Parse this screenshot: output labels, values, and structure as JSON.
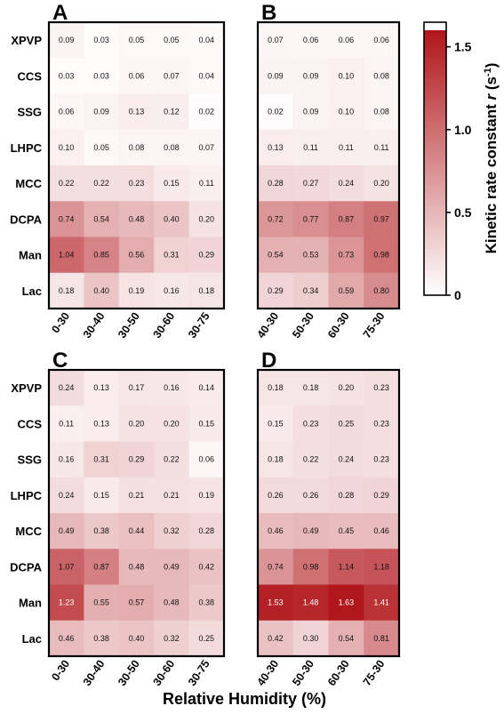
{
  "chart_data": [
    {
      "type": "heatmap",
      "panel": "A",
      "rows": [
        "XPVP",
        "CCS",
        "SSG",
        "LHPC",
        "MCC",
        "DCPA",
        "Man",
        "Lac"
      ],
      "columns": [
        "0-30",
        "30-40",
        "30-50",
        "30-60",
        "30-75"
      ],
      "values": [
        [
          0.09,
          0.03,
          0.05,
          0.05,
          0.04
        ],
        [
          0.03,
          0.03,
          0.06,
          0.07,
          0.04
        ],
        [
          0.06,
          0.09,
          0.13,
          0.12,
          0.02
        ],
        [
          0.1,
          0.05,
          0.08,
          0.08,
          0.07
        ],
        [
          0.22,
          0.22,
          0.23,
          0.15,
          0.11
        ],
        [
          0.74,
          0.54,
          0.48,
          0.4,
          0.2
        ],
        [
          1.04,
          0.85,
          0.56,
          0.31,
          0.29
        ],
        [
          0.18,
          0.4,
          0.19,
          0.16,
          0.18
        ]
      ],
      "value_labels": [
        [
          "0.09",
          "0.03",
          "0.05",
          "0.05",
          "0.04"
        ],
        [
          "0.03",
          "0.03",
          "0.06",
          "0.07",
          "0.04"
        ],
        [
          "0.06",
          "0.09",
          "0.13",
          "0.12",
          "0.02"
        ],
        [
          "0.10",
          "0.05",
          "0.08",
          "0.08",
          "0.07"
        ],
        [
          "0.22",
          "0.22",
          "0.23",
          "0.15",
          "0.11"
        ],
        [
          "0.74",
          "0.54",
          "0.48",
          "0.40",
          "0.20"
        ],
        [
          "1.04",
          "0.85",
          "0.56",
          "0.31",
          "0.29"
        ],
        [
          "0.18",
          "0.40",
          "0.19",
          "0.16",
          "0.18"
        ]
      ]
    },
    {
      "type": "heatmap",
      "panel": "B",
      "rows": [
        "XPVP",
        "CCS",
        "SSG",
        "LHPC",
        "MCC",
        "DCPA",
        "Man",
        "Lac"
      ],
      "columns": [
        "40-30",
        "50-30",
        "60-30",
        "75-30"
      ],
      "values": [
        [
          0.07,
          0.06,
          0.06,
          0.06
        ],
        [
          0.09,
          0.09,
          0.1,
          0.08
        ],
        [
          0.02,
          0.09,
          0.1,
          0.08
        ],
        [
          0.13,
          0.11,
          0.11,
          0.11
        ],
        [
          0.28,
          0.27,
          0.24,
          0.2
        ],
        [
          0.72,
          0.77,
          0.87,
          0.97
        ],
        [
          0.54,
          0.53,
          0.73,
          0.98
        ],
        [
          0.29,
          0.34,
          0.59,
          0.8
        ]
      ],
      "value_labels": [
        [
          "0.07",
          "0.06",
          "0.06",
          "0.06"
        ],
        [
          "0.09",
          "0.09",
          "0.10",
          "0.08"
        ],
        [
          "0.02",
          "0.09",
          "0.10",
          "0.08"
        ],
        [
          "0.13",
          "0.11",
          "0.11",
          "0.11"
        ],
        [
          "0.28",
          "0.27",
          "0.24",
          "0.20"
        ],
        [
          "0.72",
          "0.77",
          "0.87",
          "0.97"
        ],
        [
          "0.54",
          "0.53",
          "0.73",
          "0.98"
        ],
        [
          "0.29",
          "0.34",
          "0.59",
          "0.80"
        ]
      ]
    },
    {
      "type": "heatmap",
      "panel": "C",
      "rows": [
        "XPVP",
        "CCS",
        "SSG",
        "LHPC",
        "MCC",
        "DCPA",
        "Man",
        "Lac"
      ],
      "columns": [
        "0-30",
        "30-40",
        "30-50",
        "30-60",
        "30-75"
      ],
      "values": [
        [
          0.24,
          0.13,
          0.17,
          0.16,
          0.14
        ],
        [
          0.11,
          0.13,
          0.2,
          0.2,
          0.15
        ],
        [
          0.16,
          0.31,
          0.29,
          0.22,
          0.06
        ],
        [
          0.24,
          0.15,
          0.21,
          0.21,
          0.19
        ],
        [
          0.49,
          0.38,
          0.44,
          0.32,
          0.28
        ],
        [
          1.07,
          0.87,
          0.48,
          0.49,
          0.42
        ],
        [
          1.23,
          0.55,
          0.57,
          0.48,
          0.38
        ],
        [
          0.46,
          0.38,
          0.4,
          0.32,
          0.25
        ]
      ],
      "value_labels": [
        [
          "0.24",
          "0.13",
          "0.17",
          "0.16",
          "0.14"
        ],
        [
          "0.11",
          "0.13",
          "0.20",
          "0.20",
          "0.15"
        ],
        [
          "0.16",
          "0.31",
          "0.29",
          "0.22",
          "0.06"
        ],
        [
          "0.24",
          "0.15",
          "0.21",
          "0.21",
          "0.19"
        ],
        [
          "0.49",
          "0.38",
          "0.44",
          "0.32",
          "0.28"
        ],
        [
          "1.07",
          "0.87",
          "0.48",
          "0.49",
          "0.42"
        ],
        [
          "1.23",
          "0.55",
          "0.57",
          "0.48",
          "0.38"
        ],
        [
          "0.46",
          "0.38",
          "0.40",
          "0.32",
          "0.25"
        ]
      ]
    },
    {
      "type": "heatmap",
      "panel": "D",
      "rows": [
        "XPVP",
        "CCS",
        "SSG",
        "LHPC",
        "MCC",
        "DCPA",
        "Man",
        "Lac"
      ],
      "columns": [
        "40-30",
        "50-30",
        "60-30",
        "75-30"
      ],
      "values": [
        [
          0.18,
          0.18,
          0.2,
          0.23
        ],
        [
          0.15,
          0.23,
          0.25,
          0.23
        ],
        [
          0.18,
          0.22,
          0.24,
          0.23
        ],
        [
          0.26,
          0.26,
          0.28,
          0.29
        ],
        [
          0.46,
          0.49,
          0.45,
          0.46
        ],
        [
          0.74,
          0.98,
          1.14,
          1.18
        ],
        [
          1.53,
          1.48,
          1.63,
          1.41
        ],
        [
          0.42,
          0.3,
          0.54,
          0.81
        ]
      ],
      "value_labels": [
        [
          "0.18",
          "0.18",
          "0.20",
          "0.23"
        ],
        [
          "0.15",
          "0.23",
          "0.25",
          "0.23"
        ],
        [
          "0.18",
          "0.22",
          "0.24",
          "0.23"
        ],
        [
          "0.26",
          "0.26",
          "0.28",
          "0.29"
        ],
        [
          "0.46",
          "0.49",
          "0.45",
          "0.46"
        ],
        [
          "0.74",
          "0.98",
          "1.14",
          "1.18"
        ],
        [
          "1.53",
          "1.48",
          "1.63",
          "1.41"
        ],
        [
          "0.42",
          "0.30",
          "0.54",
          "0.81"
        ]
      ]
    }
  ],
  "colorbar": {
    "ticks": [
      0,
      0.5,
      1.0,
      1.5
    ],
    "tick_labels": [
      "0",
      "0.5",
      "1.0",
      "1.5"
    ],
    "range": [
      0,
      1.6
    ],
    "label_prefix": "Kinetic rate constant ",
    "label_symbol": "r",
    "label_unit_open": " (s",
    "label_unit_exp": "-1",
    "label_unit_close": ")",
    "low_color": "#ffffff",
    "high_color": "#b0161b"
  },
  "xlabel": "Relative Humidity (%)"
}
